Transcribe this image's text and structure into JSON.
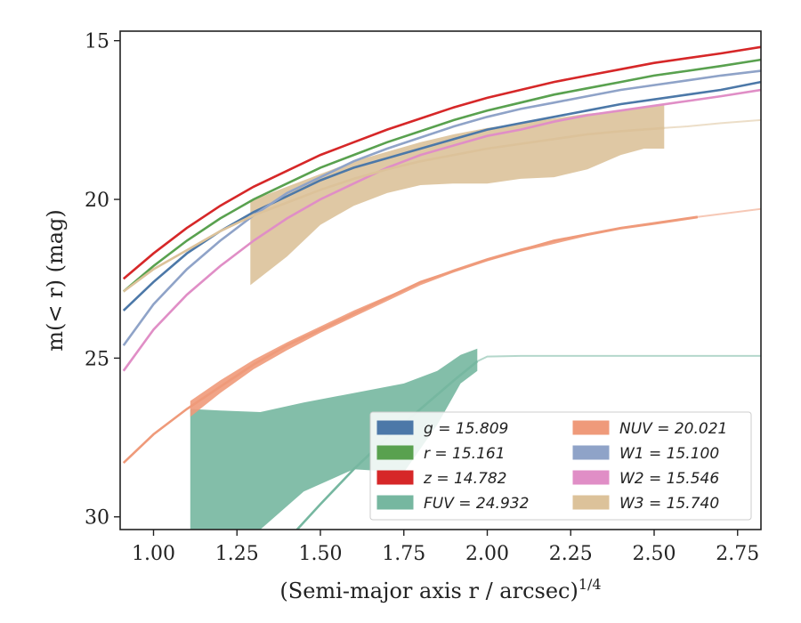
{
  "chart_data": {
    "type": "line",
    "xlabel": "(Semi-major axis r / arcsec)",
    "xlabel_superscript": "1/4",
    "ylabel": "m(< r) (mag)",
    "xlim": [
      0.9,
      2.82
    ],
    "ylim": [
      30.4,
      14.7
    ],
    "y_inverted": true,
    "grid": false,
    "legend_position": "lower-right",
    "x_ticks": [
      "1.00",
      "1.25",
      "1.50",
      "1.75",
      "2.00",
      "2.25",
      "2.50",
      "2.75"
    ],
    "y_ticks": [
      "15",
      "20",
      "25",
      "30"
    ],
    "series": [
      {
        "name": "g",
        "legend": "g = 15.809",
        "color": "#4c78a8",
        "solid_until": 2.82,
        "x": [
          0.91,
          1.0,
          1.1,
          1.2,
          1.3,
          1.4,
          1.5,
          1.6,
          1.7,
          1.8,
          1.9,
          2.0,
          2.1,
          2.2,
          2.3,
          2.4,
          2.5,
          2.6,
          2.7,
          2.82
        ],
        "y": [
          23.5,
          22.6,
          21.7,
          21.0,
          20.4,
          19.9,
          19.4,
          19.0,
          18.7,
          18.4,
          18.1,
          17.8,
          17.6,
          17.4,
          17.2,
          17.0,
          16.85,
          16.7,
          16.55,
          16.3
        ]
      },
      {
        "name": "r",
        "legend": "r = 15.161",
        "color": "#59a14f",
        "solid_until": 2.82,
        "x": [
          0.91,
          1.0,
          1.1,
          1.2,
          1.3,
          1.4,
          1.5,
          1.6,
          1.7,
          1.8,
          1.9,
          2.0,
          2.1,
          2.2,
          2.3,
          2.4,
          2.5,
          2.6,
          2.7,
          2.82
        ],
        "y": [
          22.9,
          22.1,
          21.3,
          20.6,
          20.0,
          19.5,
          19.0,
          18.6,
          18.2,
          17.85,
          17.5,
          17.2,
          16.95,
          16.7,
          16.5,
          16.3,
          16.1,
          15.95,
          15.8,
          15.6
        ]
      },
      {
        "name": "z",
        "legend": "z = 14.782",
        "color": "#d62728",
        "solid_until": 2.82,
        "x": [
          0.91,
          1.0,
          1.1,
          1.2,
          1.3,
          1.4,
          1.5,
          1.6,
          1.7,
          1.8,
          1.9,
          2.0,
          2.1,
          2.2,
          2.3,
          2.4,
          2.5,
          2.6,
          2.7,
          2.82
        ],
        "y": [
          22.5,
          21.7,
          20.9,
          20.2,
          19.6,
          19.1,
          18.6,
          18.2,
          17.8,
          17.45,
          17.1,
          16.8,
          16.55,
          16.3,
          16.1,
          15.9,
          15.7,
          15.55,
          15.4,
          15.2
        ]
      },
      {
        "name": "FUV",
        "legend": "FUV = 24.932",
        "color": "#76b7a0",
        "solid_until": 1.97,
        "x": [
          1.43,
          1.5,
          1.6,
          1.7,
          1.8,
          1.9,
          1.97,
          2.0,
          2.1,
          2.2,
          2.5,
          2.82
        ],
        "y": [
          30.4,
          29.6,
          28.5,
          27.5,
          26.6,
          25.7,
          25.1,
          24.95,
          24.93,
          24.93,
          24.93,
          24.93
        ]
      },
      {
        "name": "NUV",
        "legend": "NUV = 20.021",
        "color": "#ef9a7a",
        "solid_until": 2.63,
        "x": [
          0.91,
          1.0,
          1.1,
          1.2,
          1.3,
          1.4,
          1.5,
          1.6,
          1.7,
          1.8,
          1.9,
          2.0,
          2.1,
          2.2,
          2.3,
          2.4,
          2.5,
          2.63,
          2.82
        ],
        "y": [
          28.3,
          27.4,
          26.6,
          25.9,
          25.2,
          24.6,
          24.1,
          23.6,
          23.1,
          22.6,
          22.25,
          21.9,
          21.6,
          21.3,
          21.1,
          20.9,
          20.75,
          20.55,
          20.3
        ]
      },
      {
        "name": "W1",
        "legend": "W1 = 15.100",
        "color": "#8fa3c8",
        "solid_until": 2.82,
        "x": [
          0.91,
          1.0,
          1.1,
          1.2,
          1.3,
          1.4,
          1.5,
          1.6,
          1.7,
          1.8,
          1.9,
          2.0,
          2.1,
          2.2,
          2.3,
          2.4,
          2.5,
          2.6,
          2.7,
          2.82
        ],
        "y": [
          24.6,
          23.3,
          22.2,
          21.3,
          20.5,
          19.8,
          19.3,
          18.8,
          18.4,
          18.05,
          17.7,
          17.4,
          17.15,
          16.95,
          16.75,
          16.55,
          16.4,
          16.25,
          16.1,
          15.95
        ]
      },
      {
        "name": "W2",
        "legend": "W2 = 15.546",
        "color": "#e08ec6",
        "solid_until": 2.82,
        "x": [
          0.91,
          1.0,
          1.1,
          1.2,
          1.3,
          1.4,
          1.5,
          1.6,
          1.7,
          1.8,
          1.9,
          2.0,
          2.1,
          2.2,
          2.3,
          2.4,
          2.5,
          2.6,
          2.7,
          2.82
        ],
        "y": [
          25.4,
          24.1,
          23.0,
          22.1,
          21.3,
          20.6,
          20.0,
          19.5,
          19.0,
          18.6,
          18.3,
          18.0,
          17.8,
          17.55,
          17.35,
          17.2,
          17.05,
          16.9,
          16.75,
          16.55
        ]
      },
      {
        "name": "W3",
        "legend": "W3 = 15.740",
        "color": "#dcc29a",
        "solid_until": 2.53,
        "x": [
          0.91,
          1.0,
          1.1,
          1.2,
          1.3,
          1.4,
          1.5,
          1.6,
          1.7,
          1.8,
          1.9,
          2.0,
          2.1,
          2.2,
          2.3,
          2.4,
          2.53,
          2.6,
          2.7,
          2.82
        ],
        "y": [
          22.9,
          22.2,
          21.6,
          21.0,
          20.5,
          20.1,
          19.7,
          19.35,
          19.05,
          18.8,
          18.6,
          18.4,
          18.25,
          18.1,
          17.95,
          17.85,
          17.75,
          17.7,
          17.6,
          17.5
        ]
      }
    ],
    "bands": [
      {
        "series": "FUV",
        "x": [
          1.11,
          1.2,
          1.32,
          1.45,
          1.6,
          1.75,
          1.85,
          1.92,
          1.97
        ],
        "y_upper": [
          26.6,
          26.65,
          26.7,
          26.4,
          26.1,
          25.8,
          25.4,
          24.9,
          24.7
        ],
        "y_lower": [
          30.4,
          30.4,
          30.4,
          29.2,
          28.5,
          28.6,
          27.1,
          25.8,
          25.4
        ]
      },
      {
        "series": "NUV",
        "x": [
          1.11,
          1.2,
          1.3,
          1.4,
          1.5,
          1.6,
          1.7,
          1.8,
          1.9,
          2.0,
          2.1,
          2.2,
          2.3,
          2.4,
          2.5,
          2.63
        ],
        "y_upper": [
          26.35,
          25.7,
          25.05,
          24.5,
          24.0,
          23.5,
          23.05,
          22.6,
          22.2,
          21.85,
          21.55,
          21.3,
          21.1,
          20.9,
          20.75,
          20.55
        ],
        "y_lower": [
          26.85,
          26.1,
          25.35,
          24.75,
          24.2,
          23.7,
          23.2,
          22.7,
          22.3,
          21.95,
          21.65,
          21.4,
          21.15,
          20.95,
          20.8,
          20.6
        ]
      },
      {
        "series": "W3",
        "x": [
          1.29,
          1.4,
          1.5,
          1.6,
          1.7,
          1.8,
          1.9,
          2.0,
          2.1,
          2.2,
          2.3,
          2.4,
          2.47,
          2.53
        ],
        "y_upper": [
          20.05,
          19.6,
          19.2,
          18.8,
          18.5,
          18.2,
          17.95,
          17.75,
          17.6,
          17.45,
          17.3,
          17.2,
          17.1,
          17.0
        ],
        "y_lower": [
          22.7,
          21.8,
          20.8,
          20.2,
          19.8,
          19.55,
          19.5,
          19.5,
          19.35,
          19.3,
          19.05,
          18.6,
          18.4,
          18.4
        ]
      }
    ]
  }
}
